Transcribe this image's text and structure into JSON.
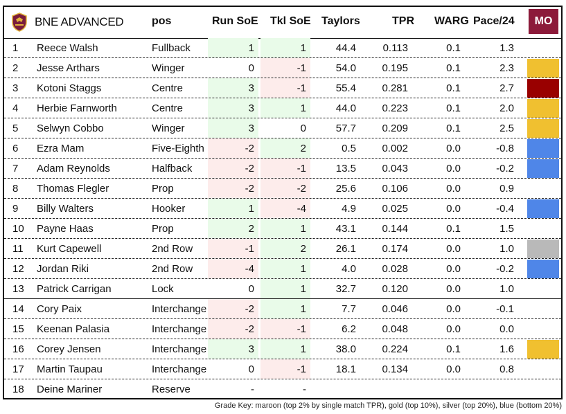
{
  "header": {
    "team": "BNE ADVANCED",
    "pos": "pos",
    "run_soe": "Run SoE",
    "tkl_soe": "Tkl SoE",
    "taylors": "Taylors",
    "tpr": "TPR",
    "warg": "WARG",
    "pace": "Pace/24",
    "badge": "MO",
    "badge_color": "#8c1a3a"
  },
  "colors": {
    "green_cell": "#e9fbe9",
    "red_cell": "#fdeceb",
    "maroon": "#990000",
    "gold": "#f0c030",
    "silver": "#b9b9b9",
    "blue": "#4f86e8"
  },
  "rows": [
    {
      "num": "1",
      "name": "Reece Walsh",
      "pos": "Fullback",
      "run": "1",
      "tkl": "1",
      "taylors": "44.4",
      "tpr": "0.113",
      "warg": "0.1",
      "pace": "1.3",
      "grade": ""
    },
    {
      "num": "2",
      "name": "Jesse Arthars",
      "pos": "Winger",
      "run": "0",
      "tkl": "-1",
      "taylors": "54.0",
      "tpr": "0.195",
      "warg": "0.1",
      "pace": "2.3",
      "grade": "gold"
    },
    {
      "num": "3",
      "name": "Kotoni Staggs",
      "pos": "Centre",
      "run": "3",
      "tkl": "-1",
      "taylors": "55.4",
      "tpr": "0.281",
      "warg": "0.1",
      "pace": "2.7",
      "grade": "maroon"
    },
    {
      "num": "4",
      "name": "Herbie Farnworth",
      "pos": "Centre",
      "run": "3",
      "tkl": "1",
      "taylors": "44.0",
      "tpr": "0.223",
      "warg": "0.1",
      "pace": "2.0",
      "grade": "gold"
    },
    {
      "num": "5",
      "name": "Selwyn Cobbo",
      "pos": "Winger",
      "run": "3",
      "tkl": "0",
      "taylors": "57.7",
      "tpr": "0.209",
      "warg": "0.1",
      "pace": "2.5",
      "grade": "gold"
    },
    {
      "num": "6",
      "name": "Ezra Mam",
      "pos": "Five-Eighth",
      "run": "-2",
      "tkl": "2",
      "taylors": "0.5",
      "tpr": "0.002",
      "warg": "0.0",
      "pace": "-0.8",
      "grade": "blue"
    },
    {
      "num": "7",
      "name": "Adam Reynolds",
      "pos": "Halfback",
      "run": "-2",
      "tkl": "-1",
      "taylors": "13.5",
      "tpr": "0.043",
      "warg": "0.0",
      "pace": "-0.2",
      "grade": "blue"
    },
    {
      "num": "8",
      "name": "Thomas Flegler",
      "pos": "Prop",
      "run": "-2",
      "tkl": "-2",
      "taylors": "25.6",
      "tpr": "0.106",
      "warg": "0.0",
      "pace": "0.9",
      "grade": ""
    },
    {
      "num": "9",
      "name": "Billy Walters",
      "pos": "Hooker",
      "run": "1",
      "tkl": "-4",
      "taylors": "4.9",
      "tpr": "0.025",
      "warg": "0.0",
      "pace": "-0.4",
      "grade": "blue"
    },
    {
      "num": "10",
      "name": "Payne Haas",
      "pos": "Prop",
      "run": "2",
      "tkl": "1",
      "taylors": "43.1",
      "tpr": "0.144",
      "warg": "0.1",
      "pace": "1.5",
      "grade": ""
    },
    {
      "num": "11",
      "name": "Kurt Capewell",
      "pos": "2nd Row",
      "run": "-1",
      "tkl": "2",
      "taylors": "26.1",
      "tpr": "0.174",
      "warg": "0.0",
      "pace": "1.0",
      "grade": "silver"
    },
    {
      "num": "12",
      "name": "Jordan Riki",
      "pos": "2nd Row",
      "run": "-4",
      "tkl": "1",
      "taylors": "4.0",
      "tpr": "0.028",
      "warg": "0.0",
      "pace": "-0.2",
      "grade": "blue"
    },
    {
      "num": "13",
      "name": "Patrick Carrigan",
      "pos": "Lock",
      "run": "0",
      "tkl": "1",
      "taylors": "32.7",
      "tpr": "0.120",
      "warg": "0.0",
      "pace": "1.0",
      "grade": ""
    },
    {
      "num": "14",
      "name": "Cory Paix",
      "pos": "Interchange",
      "run": "-2",
      "tkl": "1",
      "taylors": "7.7",
      "tpr": "0.046",
      "warg": "0.0",
      "pace": "-0.1",
      "grade": ""
    },
    {
      "num": "15",
      "name": "Keenan Palasia",
      "pos": "Interchange",
      "run": "-2",
      "tkl": "-1",
      "taylors": "6.2",
      "tpr": "0.048",
      "warg": "0.0",
      "pace": "0.0",
      "grade": ""
    },
    {
      "num": "16",
      "name": "Corey Jensen",
      "pos": "Interchange",
      "run": "3",
      "tkl": "1",
      "taylors": "38.0",
      "tpr": "0.224",
      "warg": "0.1",
      "pace": "1.6",
      "grade": "gold"
    },
    {
      "num": "17",
      "name": "Martin Taupau",
      "pos": "Interchange",
      "run": "0",
      "tkl": "-1",
      "taylors": "18.1",
      "tpr": "0.134",
      "warg": "0.0",
      "pace": "0.8",
      "grade": ""
    },
    {
      "num": "18",
      "name": "Deine Mariner",
      "pos": "Reserve",
      "run": "-",
      "tkl": "-",
      "taylors": "",
      "tpr": "",
      "warg": "",
      "pace": "",
      "grade": ""
    }
  ],
  "grade_key": "Grade Key: maroon (top 2% by single match TPR), gold (top 10%), silver (top 20%), blue (bottom 20%)"
}
